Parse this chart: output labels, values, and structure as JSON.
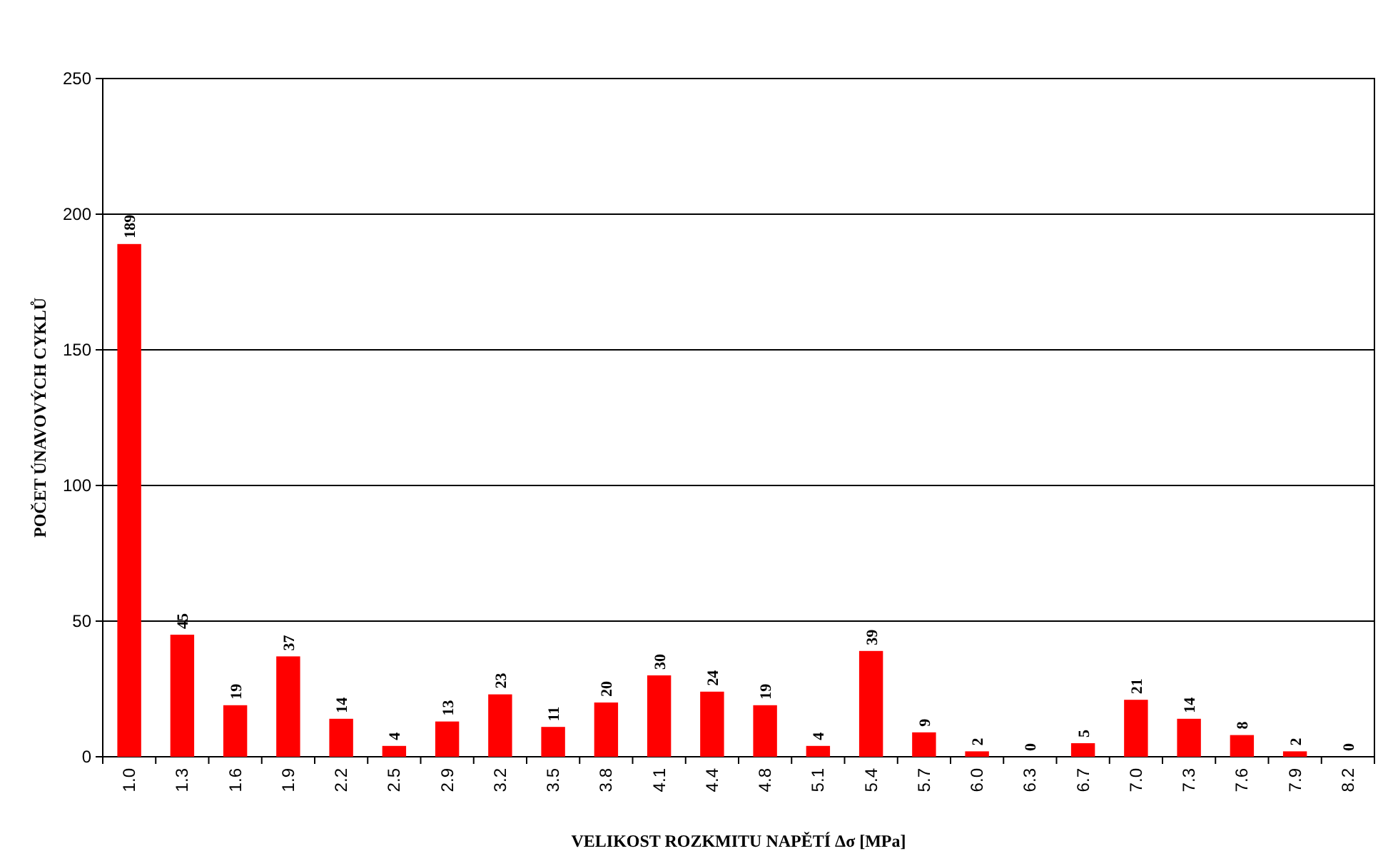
{
  "chart_data": {
    "type": "bar",
    "xlabel": "VELIKOST ROZKMITU NAPĚTÍ Δσ [MPa]",
    "ylabel": "POČET ÚNAVOVÝCH CYKLŮ",
    "categories": [
      "1.0",
      "1.3",
      "1.6",
      "1.9",
      "2.2",
      "2.5",
      "2.9",
      "3.2",
      "3.5",
      "3.8",
      "4.1",
      "4.4",
      "4.8",
      "5.1",
      "5.4",
      "5.7",
      "6.0",
      "6.3",
      "6.7",
      "7.0",
      "7.3",
      "7.6",
      "7.9",
      "8.2"
    ],
    "values": [
      189,
      45,
      19,
      37,
      14,
      4,
      13,
      23,
      11,
      20,
      30,
      24,
      19,
      4,
      39,
      9,
      2,
      0,
      5,
      21,
      14,
      8,
      2,
      0
    ],
    "color": "#ff0000",
    "ylim": [
      0,
      250
    ],
    "yticks": [
      0,
      50,
      100,
      150,
      200,
      250
    ],
    "grid": "y",
    "data_labels": true
  }
}
